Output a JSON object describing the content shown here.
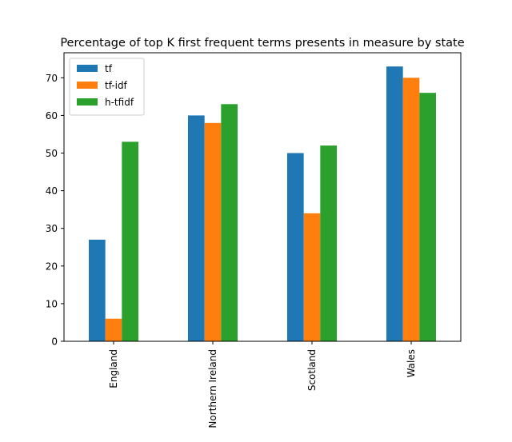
{
  "chart_data": {
    "type": "bar",
    "title": "Percentage of top K first frequent terms presents in measure by state",
    "xlabel": "",
    "ylabel": "",
    "categories": [
      "England",
      "Northern Ireland",
      "Scotland",
      "Wales"
    ],
    "series": [
      {
        "name": "tf",
        "color": "#1f77b4",
        "values": [
          27,
          60,
          50,
          73
        ]
      },
      {
        "name": "tf-idf",
        "color": "#ff7f0e",
        "values": [
          6,
          58,
          34,
          70
        ]
      },
      {
        "name": "h-tfidf",
        "color": "#2ca02c",
        "values": [
          53,
          63,
          52,
          66
        ]
      }
    ],
    "ylim": [
      0,
      76.65
    ],
    "yticks": [
      0,
      10,
      20,
      30,
      40,
      50,
      60,
      70
    ],
    "grid": false,
    "legend_position": "top-left",
    "x_tick_rotation": "vertical"
  }
}
